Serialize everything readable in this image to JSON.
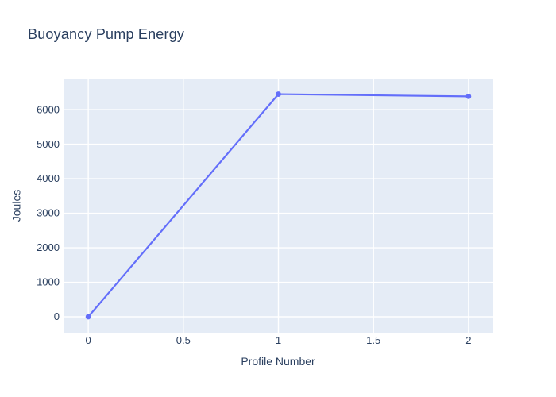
{
  "chart_data": {
    "type": "line",
    "title": "Buoyancy Pump Energy",
    "xlabel": "Profile Number",
    "ylabel": "Joules",
    "x": [
      0,
      1,
      2
    ],
    "y": [
      0,
      6450,
      6385
    ],
    "series": [
      {
        "name": "Buoyancy Pump Energy",
        "x": [
          0,
          1,
          2
        ],
        "values": [
          0,
          6450,
          6385
        ]
      }
    ],
    "x_ticks": [
      0,
      0.5,
      1,
      1.5,
      2
    ],
    "x_tick_labels": [
      "0",
      "0.5",
      "1",
      "1.5",
      "2"
    ],
    "y_ticks": [
      0,
      1000,
      2000,
      3000,
      4000,
      5000,
      6000
    ],
    "y_tick_labels": [
      "0",
      "1000",
      "2000",
      "3000",
      "4000",
      "5000",
      "6000"
    ],
    "xlim": [
      -0.13,
      2.13
    ],
    "ylim": [
      -460,
      6900
    ],
    "grid": true,
    "legend_position": "none",
    "marker_size": 3.4,
    "line_width": 2.2,
    "colors": {
      "line": "#636efa",
      "marker": "#636efa",
      "plot_bg": "#e5ecf6",
      "grid": "#ffffff",
      "text": "#2a3f5f",
      "paper_bg": "#ffffff"
    }
  }
}
